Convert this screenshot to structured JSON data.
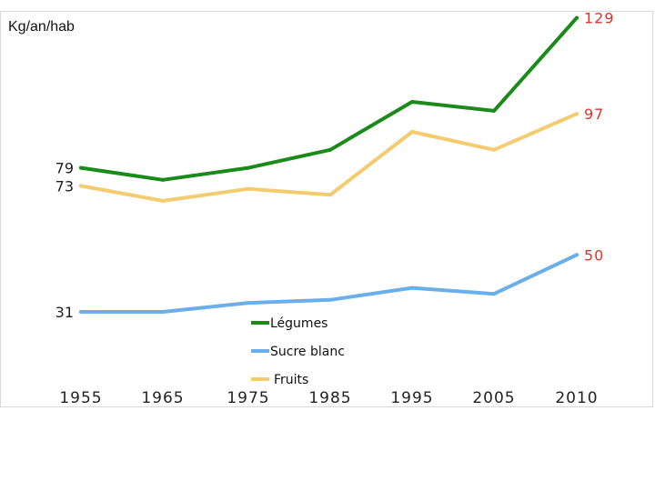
{
  "chart_data": {
    "type": "line",
    "ylabel": "Kg/an/hab",
    "x": [
      "1955",
      "1965",
      "1975",
      "1985",
      "1995",
      "2005",
      "2010"
    ],
    "series": [
      {
        "name": "Légumes",
        "color": "#1a8a1a",
        "values": [
          79,
          75,
          79,
          85,
          101,
          98,
          129
        ],
        "start_label": "79",
        "end_label": "129"
      },
      {
        "name": "Sucre blanc",
        "color": "#6aaeea",
        "values": [
          31,
          31,
          34,
          35,
          39,
          37,
          50
        ],
        "start_label": "31",
        "end_label": "50"
      },
      {
        "name": "Fruits",
        "color": "#f2cc6e",
        "values": [
          73,
          68,
          72,
          70,
          91,
          85,
          97
        ],
        "start_label": "73",
        "end_label": "97"
      }
    ],
    "end_label_color": "#d9342b",
    "legend_position": "bottom-center",
    "grid": false
  }
}
